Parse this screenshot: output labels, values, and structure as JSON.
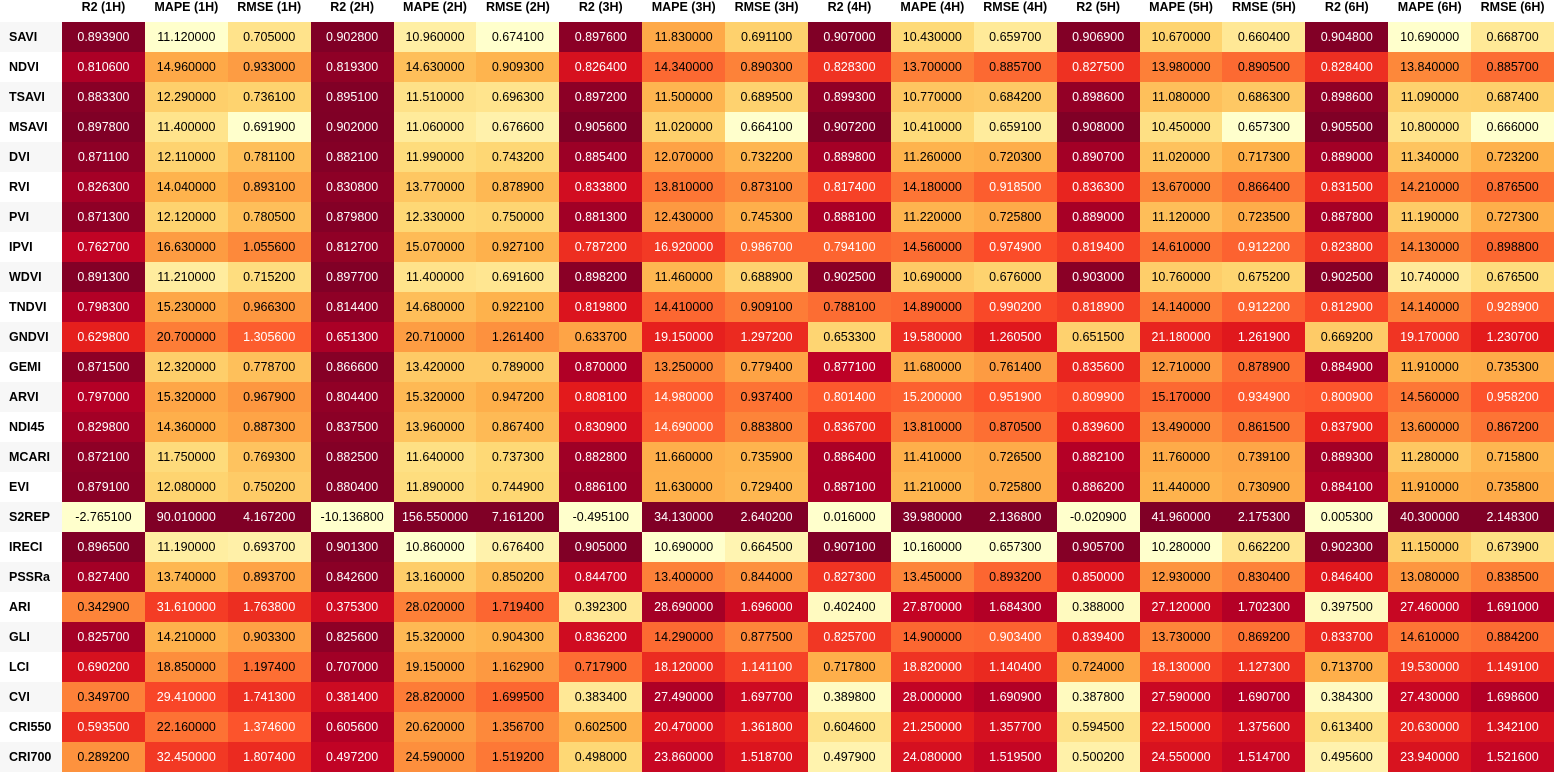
{
  "chart_data": {
    "type": "heatmap",
    "columns": [
      "R2 (1H)",
      "MAPE (1H)",
      "RMSE (1H)",
      "R2 (2H)",
      "MAPE (2H)",
      "RMSE (2H)",
      "R2 (3H)",
      "MAPE (3H)",
      "RMSE (3H)",
      "R2 (4H)",
      "MAPE (4H)",
      "RMSE (4H)",
      "R2 (5H)",
      "MAPE (5H)",
      "RMSE (5H)",
      "R2 (6H)",
      "MAPE (6H)",
      "RMSE (6H)"
    ],
    "rows": [
      "SAVI",
      "NDVI",
      "TSAVI",
      "MSAVI",
      "DVI",
      "RVI",
      "PVI",
      "IPVI",
      "WDVI",
      "TNDVI",
      "GNDVI",
      "GEMI",
      "ARVI",
      "NDI45",
      "MCARI",
      "EVI",
      "S2REP",
      "IRECI",
      "PSSRa",
      "ARI",
      "GLI",
      "LCI",
      "CVI",
      "CRI550",
      "CRI700"
    ],
    "values": [
      [
        "0.893900",
        "11.120000",
        "0.705000",
        "0.902800",
        "10.960000",
        "0.674100",
        "0.897600",
        "11.830000",
        "0.691100",
        "0.907000",
        "10.430000",
        "0.659700",
        "0.906900",
        "10.670000",
        "0.660400",
        "0.904800",
        "10.690000",
        "0.668700"
      ],
      [
        "0.810600",
        "14.960000",
        "0.933000",
        "0.819300",
        "14.630000",
        "0.909300",
        "0.826400",
        "14.340000",
        "0.890300",
        "0.828300",
        "13.700000",
        "0.885700",
        "0.827500",
        "13.980000",
        "0.890500",
        "0.828400",
        "13.840000",
        "0.885700"
      ],
      [
        "0.883300",
        "12.290000",
        "0.736100",
        "0.895100",
        "11.510000",
        "0.696300",
        "0.897200",
        "11.500000",
        "0.689500",
        "0.899300",
        "10.770000",
        "0.684200",
        "0.898600",
        "11.080000",
        "0.686300",
        "0.898600",
        "11.090000",
        "0.687400"
      ],
      [
        "0.897800",
        "11.400000",
        "0.691900",
        "0.902000",
        "11.060000",
        "0.676600",
        "0.905600",
        "11.020000",
        "0.664100",
        "0.907200",
        "10.410000",
        "0.659100",
        "0.908000",
        "10.450000",
        "0.657300",
        "0.905500",
        "10.800000",
        "0.666000"
      ],
      [
        "0.871100",
        "12.110000",
        "0.781100",
        "0.882100",
        "11.990000",
        "0.743200",
        "0.885400",
        "12.070000",
        "0.732200",
        "0.889800",
        "11.260000",
        "0.720300",
        "0.890700",
        "11.020000",
        "0.717300",
        "0.889000",
        "11.340000",
        "0.723200"
      ],
      [
        "0.826300",
        "14.040000",
        "0.893100",
        "0.830800",
        "13.770000",
        "0.878900",
        "0.833800",
        "13.810000",
        "0.873100",
        "0.817400",
        "14.180000",
        "0.918500",
        "0.836300",
        "13.670000",
        "0.866400",
        "0.831500",
        "14.210000",
        "0.876500"
      ],
      [
        "0.871300",
        "12.120000",
        "0.780500",
        "0.879800",
        "12.330000",
        "0.750000",
        "0.881300",
        "12.430000",
        "0.745300",
        "0.888100",
        "11.220000",
        "0.725800",
        "0.889000",
        "11.120000",
        "0.723500",
        "0.887800",
        "11.190000",
        "0.727300"
      ],
      [
        "0.762700",
        "16.630000",
        "1.055600",
        "0.812700",
        "15.070000",
        "0.927100",
        "0.787200",
        "16.920000",
        "0.986700",
        "0.794100",
        "14.560000",
        "0.974900",
        "0.819400",
        "14.610000",
        "0.912200",
        "0.823800",
        "14.130000",
        "0.898800"
      ],
      [
        "0.891300",
        "11.210000",
        "0.715200",
        "0.897700",
        "11.400000",
        "0.691600",
        "0.898200",
        "11.460000",
        "0.688900",
        "0.902500",
        "10.690000",
        "0.676000",
        "0.903000",
        "10.760000",
        "0.675200",
        "0.902500",
        "10.740000",
        "0.676500"
      ],
      [
        "0.798300",
        "15.230000",
        "0.966300",
        "0.814400",
        "14.680000",
        "0.922100",
        "0.819800",
        "14.410000",
        "0.909100",
        "0.788100",
        "14.890000",
        "0.990200",
        "0.818900",
        "14.140000",
        "0.912200",
        "0.812900",
        "14.140000",
        "0.928900"
      ],
      [
        "0.629800",
        "20.700000",
        "1.305600",
        "0.651300",
        "20.710000",
        "1.261400",
        "0.633700",
        "19.150000",
        "1.297200",
        "0.653300",
        "19.580000",
        "1.260500",
        "0.651500",
        "21.180000",
        "1.261900",
        "0.669200",
        "19.170000",
        "1.230700"
      ],
      [
        "0.871500",
        "12.320000",
        "0.778700",
        "0.866600",
        "13.420000",
        "0.789000",
        "0.870000",
        "13.250000",
        "0.779400",
        "0.877100",
        "11.680000",
        "0.761400",
        "0.835600",
        "12.710000",
        "0.878900",
        "0.884900",
        "11.910000",
        "0.735300"
      ],
      [
        "0.797000",
        "15.320000",
        "0.967900",
        "0.804400",
        "15.320000",
        "0.947200",
        "0.808100",
        "14.980000",
        "0.937400",
        "0.801400",
        "15.200000",
        "0.951900",
        "0.809900",
        "15.170000",
        "0.934900",
        "0.800900",
        "14.560000",
        "0.958200"
      ],
      [
        "0.829800",
        "14.360000",
        "0.887300",
        "0.837500",
        "13.960000",
        "0.867400",
        "0.830900",
        "14.690000",
        "0.883800",
        "0.836700",
        "13.810000",
        "0.870500",
        "0.839600",
        "13.490000",
        "0.861500",
        "0.837900",
        "13.600000",
        "0.867200"
      ],
      [
        "0.872100",
        "11.750000",
        "0.769300",
        "0.882500",
        "11.640000",
        "0.737300",
        "0.882800",
        "11.660000",
        "0.735900",
        "0.886400",
        "11.410000",
        "0.726500",
        "0.882100",
        "11.760000",
        "0.739100",
        "0.889300",
        "11.280000",
        "0.715800"
      ],
      [
        "0.879100",
        "12.080000",
        "0.750200",
        "0.880400",
        "11.890000",
        "0.744900",
        "0.886100",
        "11.630000",
        "0.729400",
        "0.887100",
        "11.210000",
        "0.725800",
        "0.886200",
        "11.440000",
        "0.730900",
        "0.884100",
        "11.910000",
        "0.735800"
      ],
      [
        "-2.765100",
        "90.010000",
        "4.167200",
        "-10.136800",
        "156.550000",
        "7.161200",
        "-0.495100",
        "34.130000",
        "2.640200",
        "0.016000",
        "39.980000",
        "2.136800",
        "-0.020900",
        "41.960000",
        "2.175300",
        "0.005300",
        "40.300000",
        "2.148300"
      ],
      [
        "0.896500",
        "11.190000",
        "0.693700",
        "0.901300",
        "10.860000",
        "0.676400",
        "0.905000",
        "10.690000",
        "0.664500",
        "0.907100",
        "10.160000",
        "0.657300",
        "0.905700",
        "10.280000",
        "0.662200",
        "0.902300",
        "11.150000",
        "0.673900"
      ],
      [
        "0.827400",
        "13.740000",
        "0.893700",
        "0.842600",
        "13.160000",
        "0.850200",
        "0.844700",
        "13.400000",
        "0.844000",
        "0.827300",
        "13.450000",
        "0.893200",
        "0.850000",
        "12.930000",
        "0.830400",
        "0.846400",
        "13.080000",
        "0.838500"
      ],
      [
        "0.342900",
        "31.610000",
        "1.763800",
        "0.375300",
        "28.020000",
        "1.719400",
        "0.392300",
        "28.690000",
        "1.696000",
        "0.402400",
        "27.870000",
        "1.684300",
        "0.388000",
        "27.120000",
        "1.702300",
        "0.397500",
        "27.460000",
        "1.691000"
      ],
      [
        "0.825700",
        "14.210000",
        "0.903300",
        "0.825600",
        "15.320000",
        "0.904300",
        "0.836200",
        "14.290000",
        "0.877500",
        "0.825700",
        "14.900000",
        "0.903400",
        "0.839400",
        "13.730000",
        "0.869200",
        "0.833700",
        "14.610000",
        "0.884200"
      ],
      [
        "0.690200",
        "18.850000",
        "1.197400",
        "0.707000",
        "19.150000",
        "1.162900",
        "0.717900",
        "18.120000",
        "1.141100",
        "0.717800",
        "18.820000",
        "1.140400",
        "0.724000",
        "18.130000",
        "1.127300",
        "0.713700",
        "19.530000",
        "1.149100"
      ],
      [
        "0.349700",
        "29.410000",
        "1.741300",
        "0.381400",
        "28.820000",
        "1.699500",
        "0.383400",
        "27.490000",
        "1.697700",
        "0.389800",
        "28.000000",
        "1.690900",
        "0.387800",
        "27.590000",
        "1.690700",
        "0.384300",
        "27.430000",
        "1.698600"
      ],
      [
        "0.593500",
        "22.160000",
        "1.374600",
        "0.605600",
        "20.620000",
        "1.356700",
        "0.602500",
        "20.470000",
        "1.361800",
        "0.604600",
        "21.250000",
        "1.357700",
        "0.594500",
        "22.150000",
        "1.375600",
        "0.613400",
        "20.630000",
        "1.342100"
      ],
      [
        "0.289200",
        "32.450000",
        "1.807400",
        "0.497200",
        "24.590000",
        "1.519200",
        "0.498000",
        "23.860000",
        "1.518700",
        "0.497900",
        "24.080000",
        "1.519500",
        "0.500200",
        "24.550000",
        "1.514700",
        "0.495600",
        "23.940000",
        "1.521600"
      ]
    ],
    "colormap": [
      "#ffffcc",
      "#ffeda0",
      "#fed976",
      "#feb24c",
      "#fd8d3c",
      "#fc4e2a",
      "#e31a1c",
      "#bd0026",
      "#800026"
    ],
    "xlabel": "",
    "ylabel": "",
    "title": ""
  }
}
